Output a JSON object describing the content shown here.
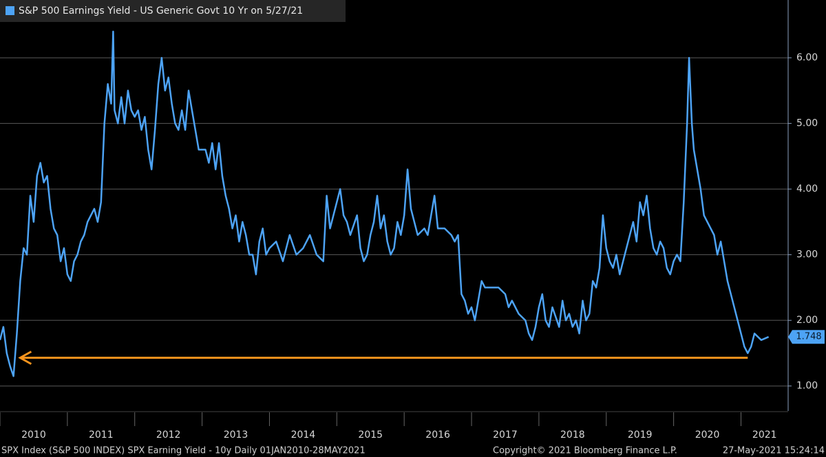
{
  "chart_data": {
    "type": "line",
    "x": [
      2010.0,
      2010.05,
      2010.1,
      2010.15,
      2010.2,
      2010.25,
      2010.3,
      2010.35,
      2010.4,
      2010.45,
      2010.5,
      2010.55,
      2010.6,
      2010.65,
      2010.7,
      2010.75,
      2010.8,
      2010.85,
      2010.9,
      2010.95,
      2011.0,
      2011.05,
      2011.1,
      2011.15,
      2011.2,
      2011.25,
      2011.3,
      2011.35,
      2011.4,
      2011.45,
      2011.5,
      2011.55,
      2011.6,
      2011.65,
      2011.68,
      2011.7,
      2011.75,
      2011.8,
      2011.85,
      2011.9,
      2011.95,
      2012.0,
      2012.05,
      2012.1,
      2012.15,
      2012.2,
      2012.25,
      2012.3,
      2012.35,
      2012.4,
      2012.45,
      2012.5,
      2012.55,
      2012.6,
      2012.65,
      2012.7,
      2012.75,
      2012.8,
      2012.85,
      2012.9,
      2012.95,
      2013.0,
      2013.05,
      2013.1,
      2013.15,
      2013.2,
      2013.25,
      2013.3,
      2013.35,
      2013.4,
      2013.45,
      2013.5,
      2013.55,
      2013.6,
      2013.65,
      2013.7,
      2013.75,
      2013.8,
      2013.85,
      2013.9,
      2013.95,
      2014.0,
      2014.1,
      2014.2,
      2014.3,
      2014.4,
      2014.5,
      2014.6,
      2014.7,
      2014.8,
      2014.85,
      2014.9,
      2014.95,
      2015.0,
      2015.05,
      2015.1,
      2015.15,
      2015.2,
      2015.3,
      2015.35,
      2015.4,
      2015.45,
      2015.5,
      2015.55,
      2015.6,
      2015.65,
      2015.7,
      2015.75,
      2015.8,
      2015.85,
      2015.9,
      2015.95,
      2016.0,
      2016.05,
      2016.1,
      2016.15,
      2016.2,
      2016.3,
      2016.35,
      2016.4,
      2016.45,
      2016.5,
      2016.6,
      2016.7,
      2016.75,
      2016.8,
      2016.85,
      2016.9,
      2016.95,
      2017.0,
      2017.05,
      2017.1,
      2017.15,
      2017.2,
      2017.3,
      2017.4,
      2017.5,
      2017.55,
      2017.6,
      2017.7,
      2017.8,
      2017.85,
      2017.9,
      2017.95,
      2018.0,
      2018.05,
      2018.1,
      2018.15,
      2018.2,
      2018.3,
      2018.35,
      2018.4,
      2018.45,
      2018.5,
      2018.55,
      2018.6,
      2018.65,
      2018.7,
      2018.75,
      2018.8,
      2018.85,
      2018.9,
      2018.95,
      2019.0,
      2019.05,
      2019.1,
      2019.15,
      2019.2,
      2019.3,
      2019.35,
      2019.4,
      2019.45,
      2019.5,
      2019.55,
      2019.6,
      2019.65,
      2019.7,
      2019.75,
      2019.8,
      2019.85,
      2019.9,
      2019.95,
      2020.0,
      2020.05,
      2020.1,
      2020.15,
      2020.2,
      2020.23,
      2020.27,
      2020.3,
      2020.35,
      2020.4,
      2020.45,
      2020.5,
      2020.55,
      2020.6,
      2020.65,
      2020.7,
      2020.75,
      2020.8,
      2020.85,
      2020.9,
      2020.95,
      2021.0,
      2021.05,
      2021.1,
      2021.15,
      2021.2,
      2021.3,
      2021.41
    ],
    "series": [
      {
        "name": "S&P 500 Earnings Yield - US Generic Govt 10 Yr on 5/27/21",
        "color": "#4da3f5",
        "values": [
          1.7,
          1.9,
          1.5,
          1.3,
          1.15,
          1.8,
          2.6,
          3.1,
          3.0,
          3.9,
          3.5,
          4.2,
          4.4,
          4.1,
          4.2,
          3.7,
          3.4,
          3.3,
          2.9,
          3.1,
          2.7,
          2.6,
          2.9,
          3.0,
          3.2,
          3.3,
          3.5,
          3.6,
          3.7,
          3.5,
          3.8,
          5.0,
          5.6,
          5.3,
          6.4,
          5.2,
          5.0,
          5.4,
          5.0,
          5.5,
          5.2,
          5.1,
          5.2,
          4.9,
          5.1,
          4.6,
          4.3,
          4.9,
          5.6,
          6.0,
          5.5,
          5.7,
          5.3,
          5.0,
          4.9,
          5.2,
          4.9,
          5.5,
          5.2,
          4.9,
          4.6,
          4.6,
          4.6,
          4.4,
          4.7,
          4.3,
          4.7,
          4.2,
          3.9,
          3.7,
          3.4,
          3.6,
          3.2,
          3.5,
          3.3,
          3.0,
          3.0,
          2.7,
          3.2,
          3.4,
          3.0,
          3.1,
          3.2,
          2.9,
          3.3,
          3.0,
          3.1,
          3.3,
          3.0,
          2.9,
          3.9,
          3.4,
          3.6,
          3.8,
          4.0,
          3.6,
          3.5,
          3.3,
          3.6,
          3.1,
          2.9,
          3.0,
          3.3,
          3.5,
          3.9,
          3.4,
          3.6,
          3.2,
          3.0,
          3.1,
          3.5,
          3.3,
          3.6,
          4.3,
          3.7,
          3.5,
          3.3,
          3.4,
          3.3,
          3.6,
          3.9,
          3.4,
          3.4,
          3.3,
          3.2,
          3.3,
          2.4,
          2.3,
          2.1,
          2.2,
          2.0,
          2.3,
          2.6,
          2.5,
          2.5,
          2.5,
          2.4,
          2.2,
          2.3,
          2.1,
          2.0,
          1.8,
          1.7,
          1.9,
          2.2,
          2.4,
          2.0,
          1.9,
          2.2,
          1.9,
          2.3,
          2.0,
          2.1,
          1.9,
          2.0,
          1.8,
          2.3,
          2.0,
          2.1,
          2.6,
          2.5,
          2.8,
          3.6,
          3.1,
          2.9,
          2.8,
          3.0,
          2.7,
          3.1,
          3.3,
          3.5,
          3.2,
          3.8,
          3.6,
          3.9,
          3.4,
          3.1,
          3.0,
          3.2,
          3.1,
          2.8,
          2.7,
          2.9,
          3.0,
          2.9,
          3.8,
          5.0,
          6.0,
          5.0,
          4.6,
          4.3,
          4.0,
          3.6,
          3.5,
          3.4,
          3.3,
          3.0,
          3.2,
          2.9,
          2.6,
          2.4,
          2.2,
          2.0,
          1.8,
          1.6,
          1.5,
          1.6,
          1.8,
          1.7,
          1.748
        ]
      }
    ],
    "xlim": [
      2010.0,
      2021.7
    ],
    "xticks": [
      {
        "value": 2010,
        "label": "2010"
      },
      {
        "value": 2011,
        "label": "2011"
      },
      {
        "value": 2012,
        "label": "2012"
      },
      {
        "value": 2013,
        "label": "2013"
      },
      {
        "value": 2014,
        "label": "2014"
      },
      {
        "value": 2015,
        "label": "2015"
      },
      {
        "value": 2016,
        "label": "2016"
      },
      {
        "value": 2017,
        "label": "2017"
      },
      {
        "value": 2018,
        "label": "2018"
      },
      {
        "value": 2019,
        "label": "2019"
      },
      {
        "value": 2020,
        "label": "2020"
      },
      {
        "value": 2021,
        "label": "2021"
      }
    ],
    "ylim": [
      0.62,
      6.88
    ],
    "yticks": [
      {
        "value": 1,
        "label": "1.00"
      },
      {
        "value": 2,
        "label": "2.00"
      },
      {
        "value": 3,
        "label": "3.00"
      },
      {
        "value": 4,
        "label": "4.00"
      },
      {
        "value": 5,
        "label": "5.00"
      },
      {
        "value": 6,
        "label": "6.00"
      }
    ],
    "grid": true,
    "y_axis_side": "right",
    "annotations": [
      {
        "type": "arrow",
        "y": 1.43,
        "x": [
          2021.1,
          2010.3
        ],
        "color": "#f7941d"
      }
    ],
    "footer": [
      "SPX Index (S&P 500 INDEX) SPX Earning Yield - 10y  Daily 01JAN2010-28MAY2021",
      "Copyright© 2021 Bloomberg Finance L.P.",
      "27-May-2021 15:24:14"
    ]
  }
}
